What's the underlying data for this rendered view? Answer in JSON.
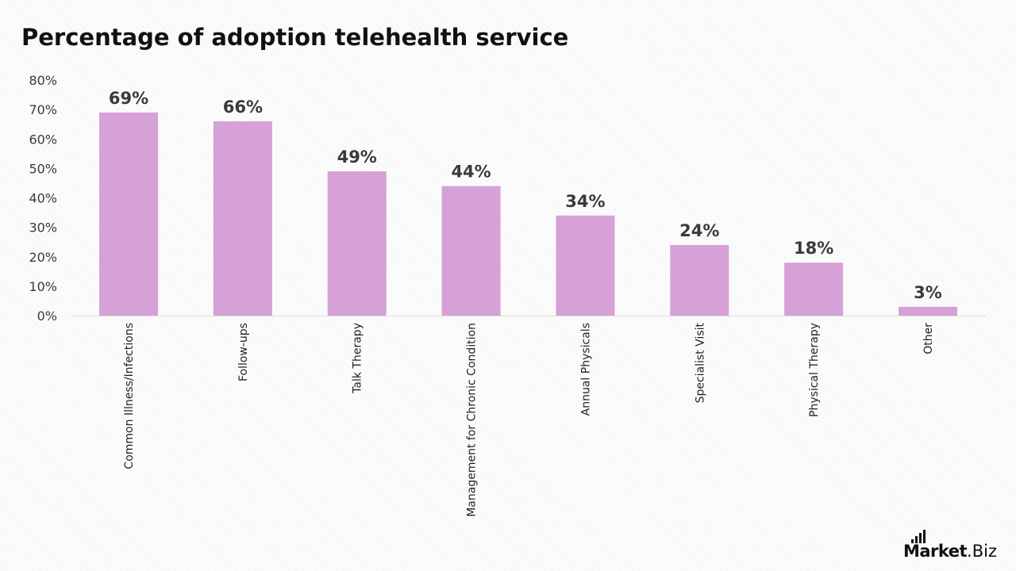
{
  "chart_data": {
    "type": "bar",
    "title": "Percentage of adoption telehealth service",
    "categories": [
      "Common Illness/Infections",
      "Follow-ups",
      "Talk Therapy",
      "Management for Chronic Condition",
      "Annual Physicals",
      "Specialist Visit",
      "Physical Therapy",
      "Other"
    ],
    "values": [
      69,
      66,
      49,
      44,
      34,
      24,
      18,
      3
    ],
    "data_labels": [
      "69%",
      "66%",
      "49%",
      "44%",
      "34%",
      "24%",
      "18%",
      "3%"
    ],
    "y_ticks": [
      "0%",
      "10%",
      "20%",
      "30%",
      "40%",
      "50%",
      "60%",
      "70%",
      "80%"
    ],
    "ylim": [
      0,
      80
    ],
    "xlabel": "",
    "ylabel": "",
    "grid": false,
    "bar_color": "#d6a1d6"
  },
  "brand": {
    "name_bold": "Market",
    "name_light": ".Biz"
  },
  "colors": {
    "title": "#111111",
    "label": "#3a3a3a",
    "axis": "#dddddd"
  }
}
